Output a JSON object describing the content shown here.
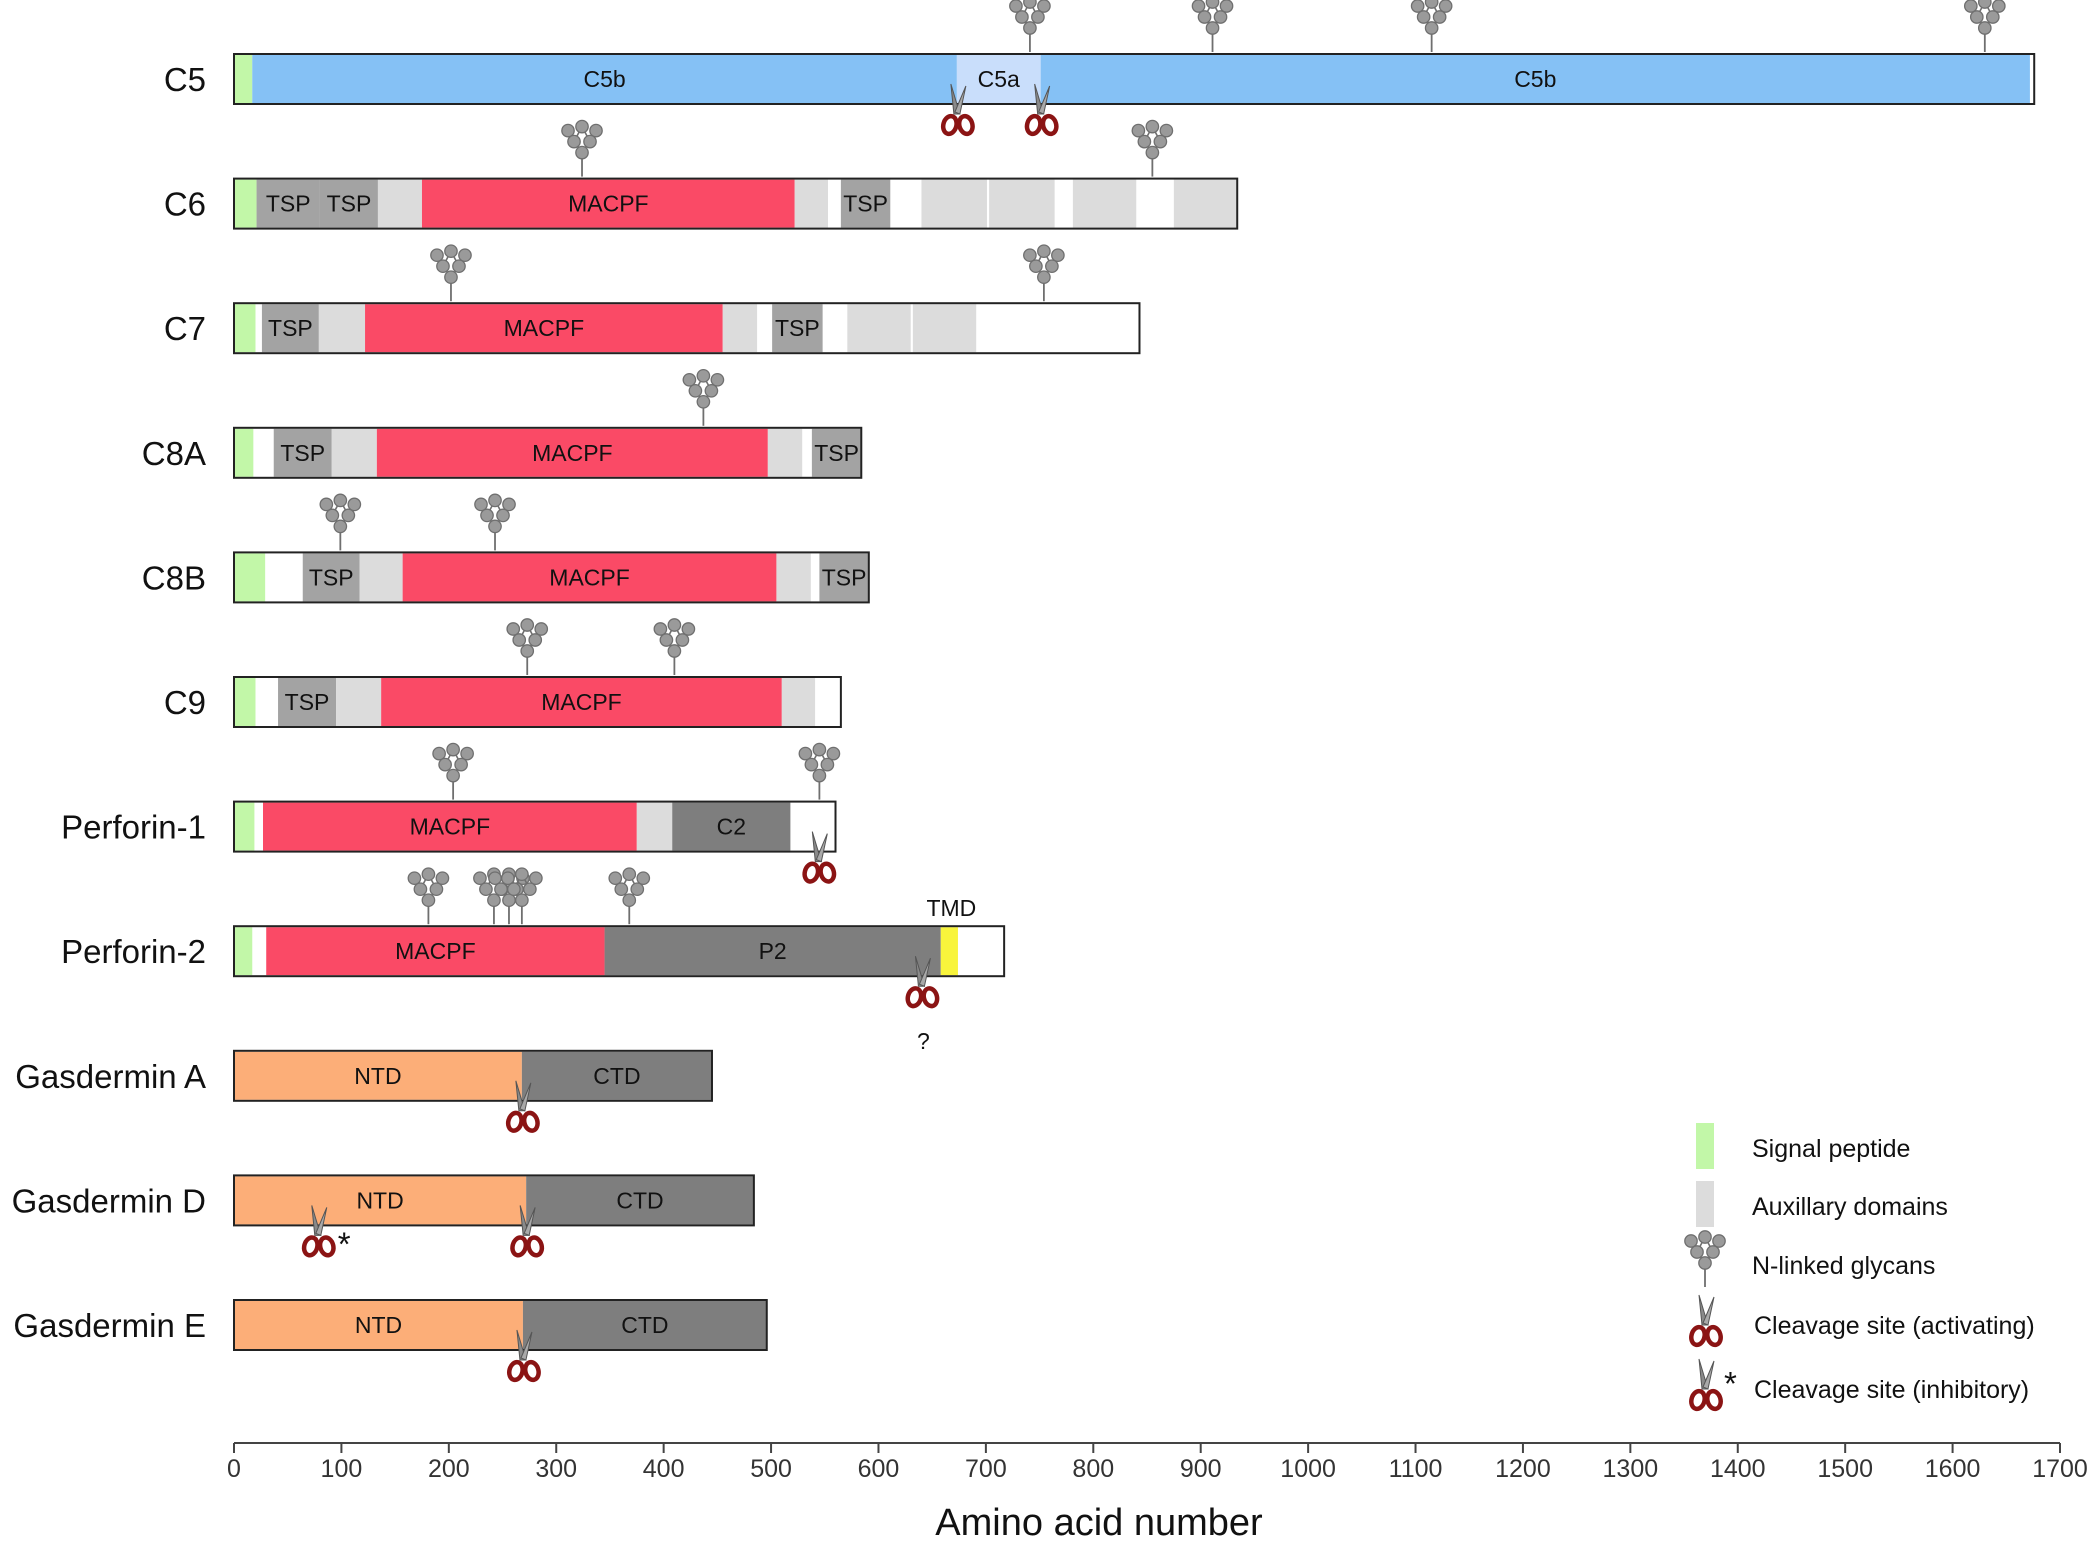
{
  "figure": {
    "axis": {
      "title": "Amino acid number",
      "min": 0,
      "max": 1700,
      "ticks": [
        0,
        100,
        200,
        300,
        400,
        500,
        600,
        700,
        800,
        900,
        1000,
        1100,
        1200,
        1300,
        1400,
        1500,
        1600,
        1700
      ]
    },
    "colors": {
      "signal": "#c2f7a8",
      "aux": "#dcdcdc",
      "tsp": "#a3a3a3",
      "macpf": "#fa4a66",
      "c5b": "#85c1f5",
      "c5a": "#c9defb",
      "dark": "#7e7e7e",
      "ntd": "#fcae78",
      "tmd": "#f8f43c",
      "scissor_blade": "#8a8a8a",
      "scissor_handle": "#8b1414",
      "glycan": "#9a9a9a"
    },
    "proteins": [
      {
        "name": "C5",
        "length": 1676,
        "domains": [
          {
            "start": 0,
            "end": 17,
            "type": "signal"
          },
          {
            "start": 17,
            "end": 673,
            "type": "c5b",
            "label": "C5b"
          },
          {
            "start": 673,
            "end": 751,
            "type": "c5a",
            "label": "C5a"
          },
          {
            "start": 751,
            "end": 1672,
            "type": "c5b",
            "label": "C5b"
          }
        ],
        "glycans": [
          741,
          911,
          1115,
          1630
        ],
        "cleavages": [
          {
            "pos": 673,
            "kind": "activating"
          },
          {
            "pos": 751,
            "kind": "activating"
          }
        ]
      },
      {
        "name": "C6",
        "length": 934,
        "domains": [
          {
            "start": 0,
            "end": 21,
            "type": "signal"
          },
          {
            "start": 21,
            "end": 80,
            "type": "tsp",
            "label": "TSP"
          },
          {
            "start": 80,
            "end": 134,
            "type": "tsp",
            "label": "TSP"
          },
          {
            "start": 134,
            "end": 175,
            "type": "aux"
          },
          {
            "start": 175,
            "end": 522,
            "type": "macpf",
            "label": "MACPF"
          },
          {
            "start": 522,
            "end": 553,
            "type": "aux"
          },
          {
            "start": 565,
            "end": 611,
            "type": "tsp",
            "label": "TSP"
          },
          {
            "start": 640,
            "end": 701,
            "type": "aux"
          },
          {
            "start": 703,
            "end": 764,
            "type": "aux"
          },
          {
            "start": 781,
            "end": 840,
            "type": "aux"
          },
          {
            "start": 875,
            "end": 934,
            "type": "aux"
          }
        ],
        "glycans": [
          324,
          855
        ],
        "cleavages": []
      },
      {
        "name": "C7",
        "length": 843,
        "domains": [
          {
            "start": 0,
            "end": 20,
            "type": "signal"
          },
          {
            "start": 26,
            "end": 79,
            "type": "tsp",
            "label": "TSP"
          },
          {
            "start": 79,
            "end": 122,
            "type": "aux"
          },
          {
            "start": 122,
            "end": 455,
            "type": "macpf",
            "label": "MACPF"
          },
          {
            "start": 455,
            "end": 487,
            "type": "aux"
          },
          {
            "start": 501,
            "end": 548,
            "type": "tsp",
            "label": "TSP"
          },
          {
            "start": 571,
            "end": 630,
            "type": "aux"
          },
          {
            "start": 632,
            "end": 691,
            "type": "aux"
          }
        ],
        "glycans": [
          202,
          754
        ],
        "cleavages": []
      },
      {
        "name": "C8A",
        "length": 584,
        "domains": [
          {
            "start": 0,
            "end": 18,
            "type": "signal"
          },
          {
            "start": 37,
            "end": 91,
            "type": "tsp",
            "label": "TSP"
          },
          {
            "start": 91,
            "end": 133,
            "type": "aux"
          },
          {
            "start": 133,
            "end": 497,
            "type": "macpf",
            "label": "MACPF"
          },
          {
            "start": 497,
            "end": 529,
            "type": "aux"
          },
          {
            "start": 538,
            "end": 584,
            "type": "tsp",
            "label": "TSP"
          }
        ],
        "glycans": [
          437
        ],
        "cleavages": []
      },
      {
        "name": "C8B",
        "length": 591,
        "domains": [
          {
            "start": 0,
            "end": 29,
            "type": "signal"
          },
          {
            "start": 64,
            "end": 117,
            "type": "tsp",
            "label": "TSP"
          },
          {
            "start": 117,
            "end": 157,
            "type": "aux"
          },
          {
            "start": 157,
            "end": 505,
            "type": "macpf",
            "label": "MACPF"
          },
          {
            "start": 505,
            "end": 537,
            "type": "aux"
          },
          {
            "start": 545,
            "end": 591,
            "type": "tsp",
            "label": "TSP"
          }
        ],
        "glycans": [
          99,
          243
        ],
        "cleavages": []
      },
      {
        "name": "C9",
        "length": 565,
        "domains": [
          {
            "start": 0,
            "end": 20,
            "type": "signal"
          },
          {
            "start": 41,
            "end": 95,
            "type": "tsp",
            "label": "TSP"
          },
          {
            "start": 95,
            "end": 137,
            "type": "aux"
          },
          {
            "start": 137,
            "end": 510,
            "type": "macpf",
            "label": "MACPF"
          },
          {
            "start": 510,
            "end": 541,
            "type": "aux"
          }
        ],
        "glycans": [
          273,
          410
        ],
        "cleavages": []
      },
      {
        "name": "Perforin-1",
        "length": 560,
        "domains": [
          {
            "start": 0,
            "end": 19,
            "type": "signal"
          },
          {
            "start": 27,
            "end": 375,
            "type": "macpf",
            "label": "MACPF"
          },
          {
            "start": 375,
            "end": 408,
            "type": "aux"
          },
          {
            "start": 408,
            "end": 518,
            "type": "dark",
            "label": "C2"
          }
        ],
        "glycans": [
          204,
          545
        ],
        "cleavages": [
          {
            "pos": 544,
            "kind": "activating"
          }
        ]
      },
      {
        "name": "Perforin-2",
        "length": 717,
        "domains": [
          {
            "start": 0,
            "end": 17,
            "type": "signal"
          },
          {
            "start": 30,
            "end": 345,
            "type": "macpf",
            "label": "MACPF"
          },
          {
            "start": 345,
            "end": 658,
            "type": "dark",
            "label": "P2"
          },
          {
            "start": 658,
            "end": 674,
            "type": "tmd"
          }
        ],
        "glycans": [
          181,
          242,
          256,
          268,
          368
        ],
        "cleavages": [
          {
            "pos": 640,
            "kind": "activating",
            "label": "?"
          }
        ]
      },
      {
        "name": "Gasdermin A",
        "length": 445,
        "domains": [
          {
            "start": 0,
            "end": 268,
            "type": "ntd",
            "label": "NTD"
          },
          {
            "start": 268,
            "end": 445,
            "type": "dark",
            "label": "CTD"
          }
        ],
        "glycans": [],
        "cleavages": [
          {
            "pos": 268,
            "kind": "activating"
          }
        ]
      },
      {
        "name": "Gasdermin D",
        "length": 484,
        "domains": [
          {
            "start": 0,
            "end": 272,
            "type": "ntd",
            "label": "NTD"
          },
          {
            "start": 272,
            "end": 484,
            "type": "dark",
            "label": "CTD"
          }
        ],
        "glycans": [],
        "cleavages": [
          {
            "pos": 78,
            "kind": "inhibitory"
          },
          {
            "pos": 272,
            "kind": "activating"
          }
        ]
      },
      {
        "name": "Gasdermin E",
        "length": 496,
        "domains": [
          {
            "start": 0,
            "end": 269,
            "type": "ntd",
            "label": "NTD"
          },
          {
            "start": 269,
            "end": 496,
            "type": "dark",
            "label": "CTD"
          }
        ],
        "glycans": [],
        "cleavages": [
          {
            "pos": 269,
            "kind": "activating"
          }
        ]
      }
    ],
    "annotations": {
      "tmd_label": "TMD",
      "inhibitory_mark": "*"
    },
    "legend": [
      {
        "key": "signal",
        "label": "Signal peptide"
      },
      {
        "key": "aux",
        "label": "Auxillary domains"
      },
      {
        "key": "glycan",
        "label": "N-linked glycans"
      },
      {
        "key": "cleave-activating",
        "label": "Cleavage site (activating)"
      },
      {
        "key": "cleave-inhibitory",
        "label": "Cleavage site (inhibitory)"
      }
    ]
  }
}
